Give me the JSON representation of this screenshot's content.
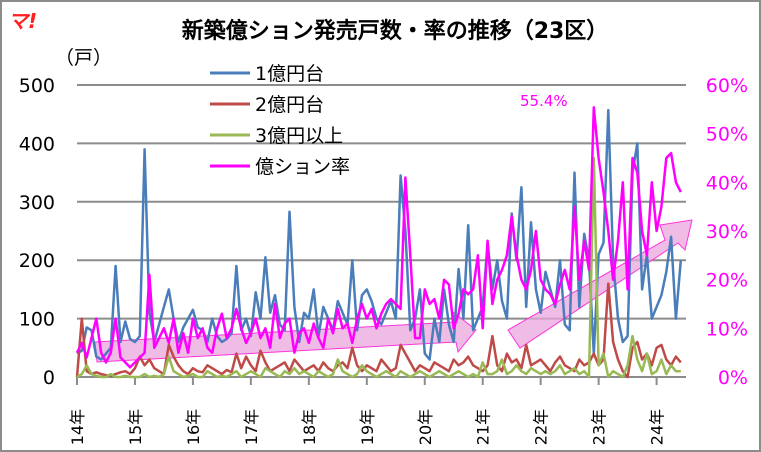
{
  "logo": "マ!",
  "chart_data": {
    "type": "line",
    "title": "新築億ション発売戸数・率の推移（23区）",
    "ylabel": "（戸）",
    "ylim": [
      0,
      500
    ],
    "y2lim": [
      0,
      60
    ],
    "yticks": [
      "0",
      "100",
      "200",
      "300",
      "400",
      "500"
    ],
    "y2ticks": [
      "0%",
      "10%",
      "20%",
      "30%",
      "40%",
      "50%",
      "60%"
    ],
    "xticks": [
      "14年",
      "15年",
      "16年",
      "17年",
      "18年",
      "19年",
      "20年",
      "21年",
      "22年",
      "23年",
      "24年"
    ],
    "x_start": "2014-01",
    "x_interval": "month",
    "grid": true,
    "legend_position": "top-left",
    "annotation": "55.4%",
    "colors": {
      "s1": "#4a7ebb",
      "s2": "#be4b48",
      "s3": "#98b954",
      "s4": "#ff00ff",
      "arrow": "#e8a6dc"
    },
    "series": [
      {
        "name": "1億円台",
        "axis": "left",
        "values": [
          40,
          45,
          85,
          80,
          35,
          30,
          40,
          50,
          190,
          60,
          95,
          65,
          60,
          70,
          390,
          110,
          60,
          90,
          120,
          150,
          100,
          60,
          85,
          100,
          115,
          85,
          80,
          60,
          100,
          70,
          60,
          65,
          75,
          190,
          80,
          100,
          70,
          145,
          100,
          205,
          110,
          140,
          90,
          80,
          283,
          120,
          60,
          110,
          100,
          150,
          70,
          120,
          100,
          80,
          130,
          110,
          90,
          200,
          80,
          140,
          150,
          130,
          100,
          90,
          110,
          130,
          100,
          345,
          250,
          80,
          100,
          150,
          40,
          30,
          100,
          60,
          150,
          90,
          60,
          185,
          100,
          260,
          80,
          100,
          120,
          230,
          150,
          200,
          130,
          100,
          280,
          200,
          325,
          120,
          265,
          150,
          110,
          180,
          150,
          120,
          200,
          90,
          80,
          350,
          120,
          245,
          200,
          40,
          210,
          230,
          457,
          200,
          100,
          60,
          70,
          350,
          400,
          150,
          210,
          100,
          120,
          140,
          180,
          240,
          100,
          200
        ]
      },
      {
        "name": "2億円台",
        "axis": "left",
        "values": [
          0,
          100,
          10,
          5,
          8,
          5,
          3,
          2,
          5,
          8,
          10,
          5,
          15,
          35,
          20,
          30,
          15,
          10,
          5,
          55,
          35,
          20,
          10,
          5,
          15,
          10,
          8,
          20,
          15,
          10,
          5,
          12,
          8,
          40,
          15,
          35,
          20,
          10,
          45,
          25,
          10,
          15,
          20,
          25,
          10,
          30,
          20,
          10,
          15,
          20,
          10,
          25,
          15,
          10,
          20,
          25,
          15,
          50,
          20,
          10,
          20,
          15,
          10,
          30,
          20,
          10,
          15,
          55,
          40,
          25,
          10,
          20,
          15,
          10,
          25,
          20,
          15,
          10,
          30,
          20,
          25,
          35,
          20,
          15,
          10,
          20,
          70,
          20,
          10,
          40,
          25,
          30,
          15,
          55,
          20,
          25,
          30,
          20,
          10,
          25,
          35,
          20,
          15,
          10,
          30,
          20,
          25,
          40,
          20,
          30,
          160,
          60,
          30,
          10,
          0,
          50,
          60,
          30,
          40,
          20,
          50,
          55,
          30,
          20,
          35,
          25
        ]
      },
      {
        "name": "3億円以上",
        "axis": "left",
        "values": [
          0,
          5,
          20,
          5,
          2,
          0,
          0,
          5,
          0,
          0,
          2,
          0,
          0,
          0,
          5,
          0,
          2,
          0,
          5,
          35,
          10,
          5,
          0,
          2,
          5,
          0,
          0,
          10,
          5,
          0,
          2,
          0,
          5,
          10,
          0,
          5,
          10,
          5,
          0,
          15,
          10,
          5,
          0,
          10,
          5,
          15,
          5,
          10,
          5,
          0,
          10,
          5,
          0,
          5,
          30,
          10,
          5,
          0,
          5,
          20,
          10,
          5,
          0,
          5,
          10,
          5,
          0,
          10,
          5,
          0,
          5,
          10,
          5,
          0,
          5,
          10,
          5,
          0,
          5,
          10,
          5,
          0,
          5,
          0,
          25,
          5,
          5,
          10,
          30,
          5,
          10,
          20,
          10,
          5,
          15,
          10,
          5,
          10,
          5,
          10,
          20,
          5,
          10,
          15,
          5,
          10,
          0,
          375,
          20,
          40,
          0,
          10,
          5,
          0,
          20,
          70,
          30,
          10,
          40,
          5,
          10,
          30,
          5,
          20,
          10,
          10
        ]
      },
      {
        "name": "億ション率",
        "axis": "right",
        "unit": "%",
        "values": [
          5,
          7,
          4,
          8,
          12,
          5,
          3,
          5,
          12,
          4,
          3,
          2,
          3,
          4,
          5,
          21,
          6,
          8,
          10,
          7,
          12,
          5,
          9,
          5,
          12,
          8,
          10,
          6,
          5,
          10,
          13,
          8,
          10,
          14,
          10,
          7,
          9,
          12,
          8,
          10,
          6,
          15,
          8,
          11,
          12,
          5,
          9,
          10,
          7,
          11,
          8,
          6,
          12,
          9,
          14,
          10,
          11,
          7,
          12,
          15,
          12,
          14,
          10,
          13,
          15,
          16,
          15,
          14,
          41,
          25,
          8,
          8,
          18,
          15,
          16,
          12,
          20,
          19,
          10,
          13,
          18,
          17,
          18,
          25,
          10,
          28,
          15,
          20,
          22,
          25,
          33,
          25,
          20,
          18,
          22,
          30,
          20,
          18,
          17,
          15,
          19,
          22,
          18,
          35,
          20,
          28,
          22,
          55.4,
          45,
          38,
          30,
          20,
          28,
          40,
          18,
          45,
          42,
          30,
          25,
          40,
          30,
          35,
          45,
          46,
          40,
          38
        ]
      }
    ]
  }
}
